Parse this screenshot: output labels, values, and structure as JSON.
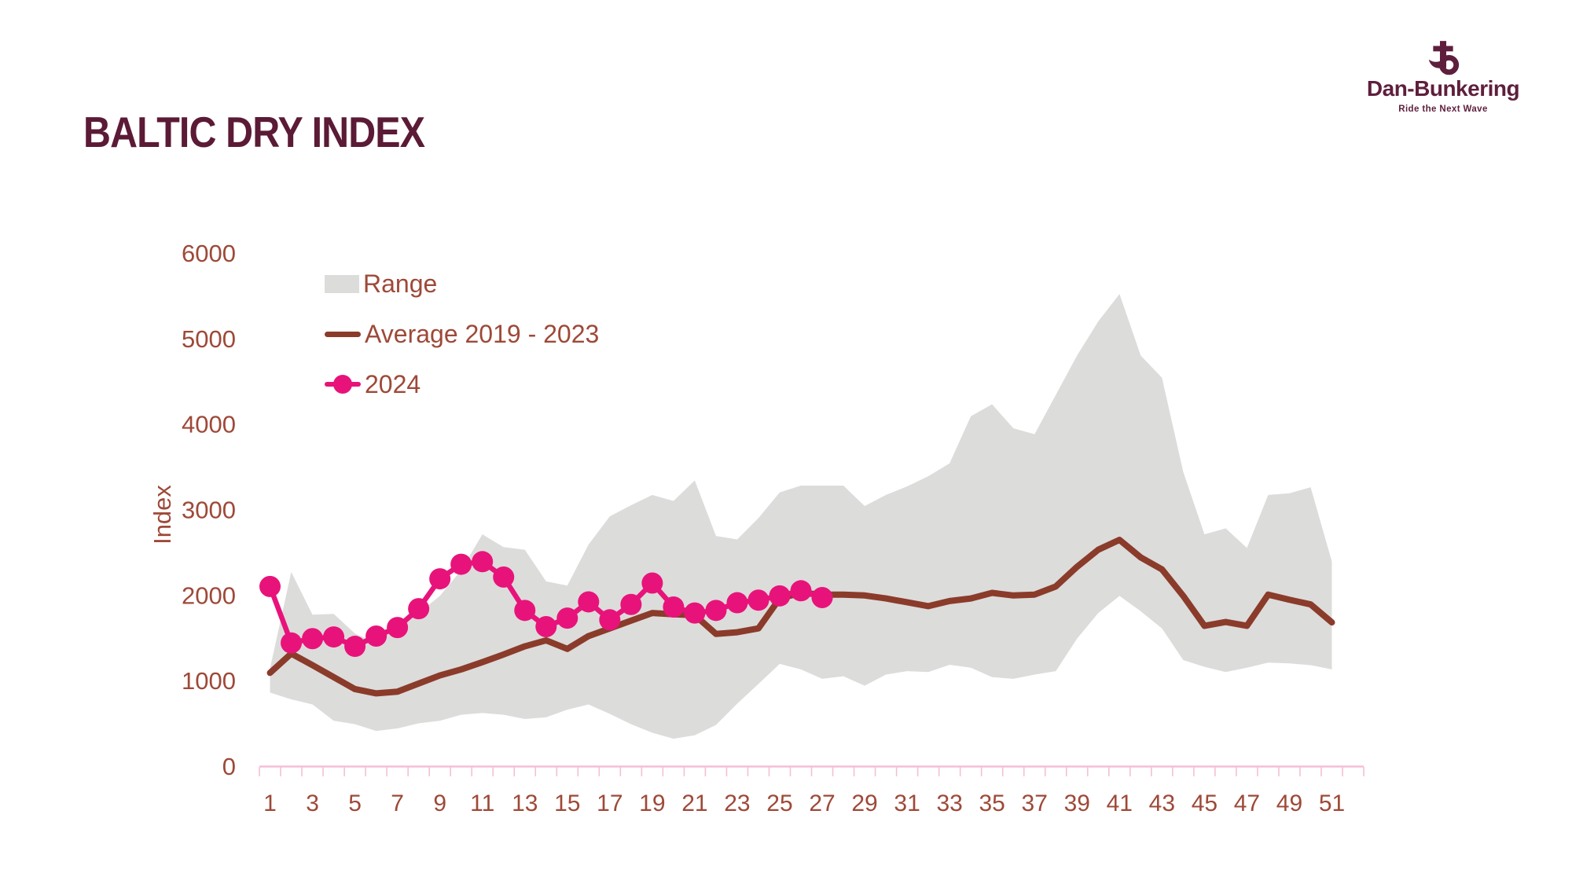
{
  "page": {
    "title": "BALTIC DRY INDEX"
  },
  "logo": {
    "brand": "Dan-Bunkering",
    "tagline": "Ride the Next Wave",
    "icon": "anchor-b-mark"
  },
  "legend": {
    "range_label": "Range",
    "average_label": "Average 2019 - 2023",
    "y2024_label": "2024"
  },
  "style": {
    "title_color": "#5B1A35",
    "logo_color": "#5E1F3C",
    "text_color": "#9E4938",
    "band_color": "#DCDCDB",
    "average_color": "#8B3B2A",
    "y2024_color": "#E8137A",
    "axis_color": "#F5BFD7"
  },
  "chart_data": {
    "type": "line",
    "title": "BALTIC DRY INDEX",
    "ylabel": "Index",
    "xlabel": "",
    "ylim": [
      0,
      6000
    ],
    "yticks": [
      0,
      1000,
      2000,
      3000,
      4000,
      5000,
      6000
    ],
    "xtick_labels": [
      1,
      3,
      5,
      7,
      9,
      11,
      13,
      15,
      17,
      19,
      21,
      23,
      25,
      27,
      29,
      31,
      33,
      35,
      37,
      39,
      41,
      43,
      45,
      47,
      49,
      51
    ],
    "x_slots": 52,
    "grid": false,
    "legend_position": "upper-left",
    "weeks": [
      1,
      2,
      3,
      4,
      5,
      6,
      7,
      8,
      9,
      10,
      11,
      12,
      13,
      14,
      15,
      16,
      17,
      18,
      19,
      20,
      21,
      22,
      23,
      24,
      25,
      26,
      27,
      28,
      29,
      30,
      31,
      32,
      33,
      34,
      35,
      36,
      37,
      38,
      39,
      40,
      41,
      42,
      43,
      44,
      45,
      46,
      47,
      48,
      49,
      50,
      51
    ],
    "series": [
      {
        "name": "Range",
        "type": "band",
        "high": [
          1150,
          2280,
          1780,
          1790,
          1560,
          1450,
          1680,
          1800,
          2000,
          2300,
          2720,
          2570,
          2540,
          2170,
          2120,
          2600,
          2930,
          3060,
          3180,
          3110,
          3350,
          2700,
          2660,
          2910,
          3210,
          3290,
          3290,
          3290,
          3050,
          3180,
          3280,
          3400,
          3550,
          4100,
          4240,
          3960,
          3890,
          4350,
          4810,
          5210,
          5530,
          4810,
          4550,
          3450,
          2720,
          2790,
          2560,
          3180,
          3200,
          3270,
          2400
        ],
        "low": [
          870,
          790,
          730,
          540,
          500,
          420,
          450,
          510,
          540,
          610,
          630,
          610,
          560,
          580,
          670,
          730,
          620,
          500,
          400,
          330,
          370,
          490,
          740,
          970,
          1205,
          1140,
          1030,
          1060,
          950,
          1080,
          1120,
          1110,
          1195,
          1160,
          1050,
          1030,
          1080,
          1120,
          1500,
          1800,
          2000,
          1820,
          1620,
          1250,
          1170,
          1110,
          1160,
          1220,
          1210,
          1190,
          1140
        ]
      },
      {
        "name": "Average 2019 - 2023",
        "type": "line",
        "values": [
          1100,
          1325,
          1190,
          1050,
          910,
          860,
          880,
          975,
          1070,
          1140,
          1225,
          1315,
          1410,
          1480,
          1380,
          1530,
          1620,
          1710,
          1800,
          1785,
          1775,
          1555,
          1575,
          1620,
          1970,
          2035,
          2015,
          2015,
          2005,
          1970,
          1925,
          1880,
          1940,
          1970,
          2035,
          2005,
          2015,
          2110,
          2340,
          2540,
          2655,
          2450,
          2310,
          2000,
          1650,
          1695,
          1650,
          2015,
          1955,
          1900,
          1690
        ]
      },
      {
        "name": "2024",
        "type": "line-markers",
        "values": [
          2110,
          1450,
          1500,
          1520,
          1410,
          1530,
          1630,
          1850,
          2200,
          2370,
          2400,
          2220,
          1830,
          1640,
          1740,
          1930,
          1720,
          1900,
          2150,
          1870,
          1800,
          1830,
          1920,
          1950,
          2000,
          2060,
          1980
        ]
      }
    ]
  }
}
